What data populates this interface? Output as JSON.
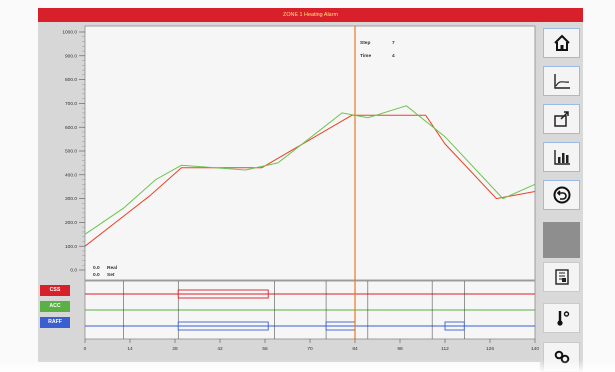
{
  "window": {
    "title": "ZONE 1 Heating Alarm"
  },
  "chart_data": {
    "type": "line",
    "ylim": [
      0,
      1000
    ],
    "xlim": [
      0,
      140
    ],
    "yticks": [
      "1000.0",
      "900.0",
      "800.0",
      "700.0",
      "600.0",
      "500.0",
      "400.0",
      "300.0",
      "200.0",
      "100.0",
      "0.0"
    ],
    "xticks": [
      "0",
      "14",
      "28",
      "42",
      "56",
      "70",
      "84",
      "98",
      "112",
      "126",
      "140"
    ],
    "series": [
      {
        "color": "#e8432a",
        "x": [
          0,
          20,
          30,
          55,
          83,
          90,
          106,
          112,
          128,
          140
        ],
        "y": [
          100,
          310,
          430,
          430,
          650,
          650,
          650,
          530,
          300,
          330
        ]
      },
      {
        "color": "#6cc44e",
        "x": [
          0,
          12,
          22,
          30,
          50,
          60,
          80,
          88,
          100,
          112,
          130,
          140
        ],
        "y": [
          150,
          260,
          380,
          440,
          420,
          450,
          660,
          640,
          690,
          560,
          300,
          360
        ]
      }
    ],
    "cursor_x": 84
  },
  "cursor_readout": {
    "step_label": "Step",
    "step_value": "7",
    "time_label": "Time",
    "time_value": "4"
  },
  "bottom_legend": {
    "line1_value": "0.0",
    "line1_label": "Real",
    "line2_value": "0.0",
    "line2_label": "Set"
  },
  "traces": [
    {
      "label": "CSS",
      "color": "#d8202a"
    },
    {
      "label": "ACC",
      "color": "#5bb045"
    },
    {
      "label": "RAFF",
      "color": "#3a5fd0"
    }
  ],
  "sidebar": {
    "buttons": [
      {
        "name": "home-button",
        "icon": "home-icon"
      },
      {
        "name": "chart-button",
        "icon": "line-chart-icon"
      },
      {
        "name": "export-button",
        "icon": "export-icon"
      },
      {
        "name": "bar-chart-button",
        "icon": "bar-chart-icon"
      },
      {
        "name": "back-button",
        "icon": "undo-icon"
      },
      {
        "name": "report-button",
        "icon": "report-icon"
      },
      {
        "name": "temperature-button",
        "icon": "thermometer-icon"
      },
      {
        "name": "settings-button",
        "icon": "link-icon"
      }
    ]
  }
}
